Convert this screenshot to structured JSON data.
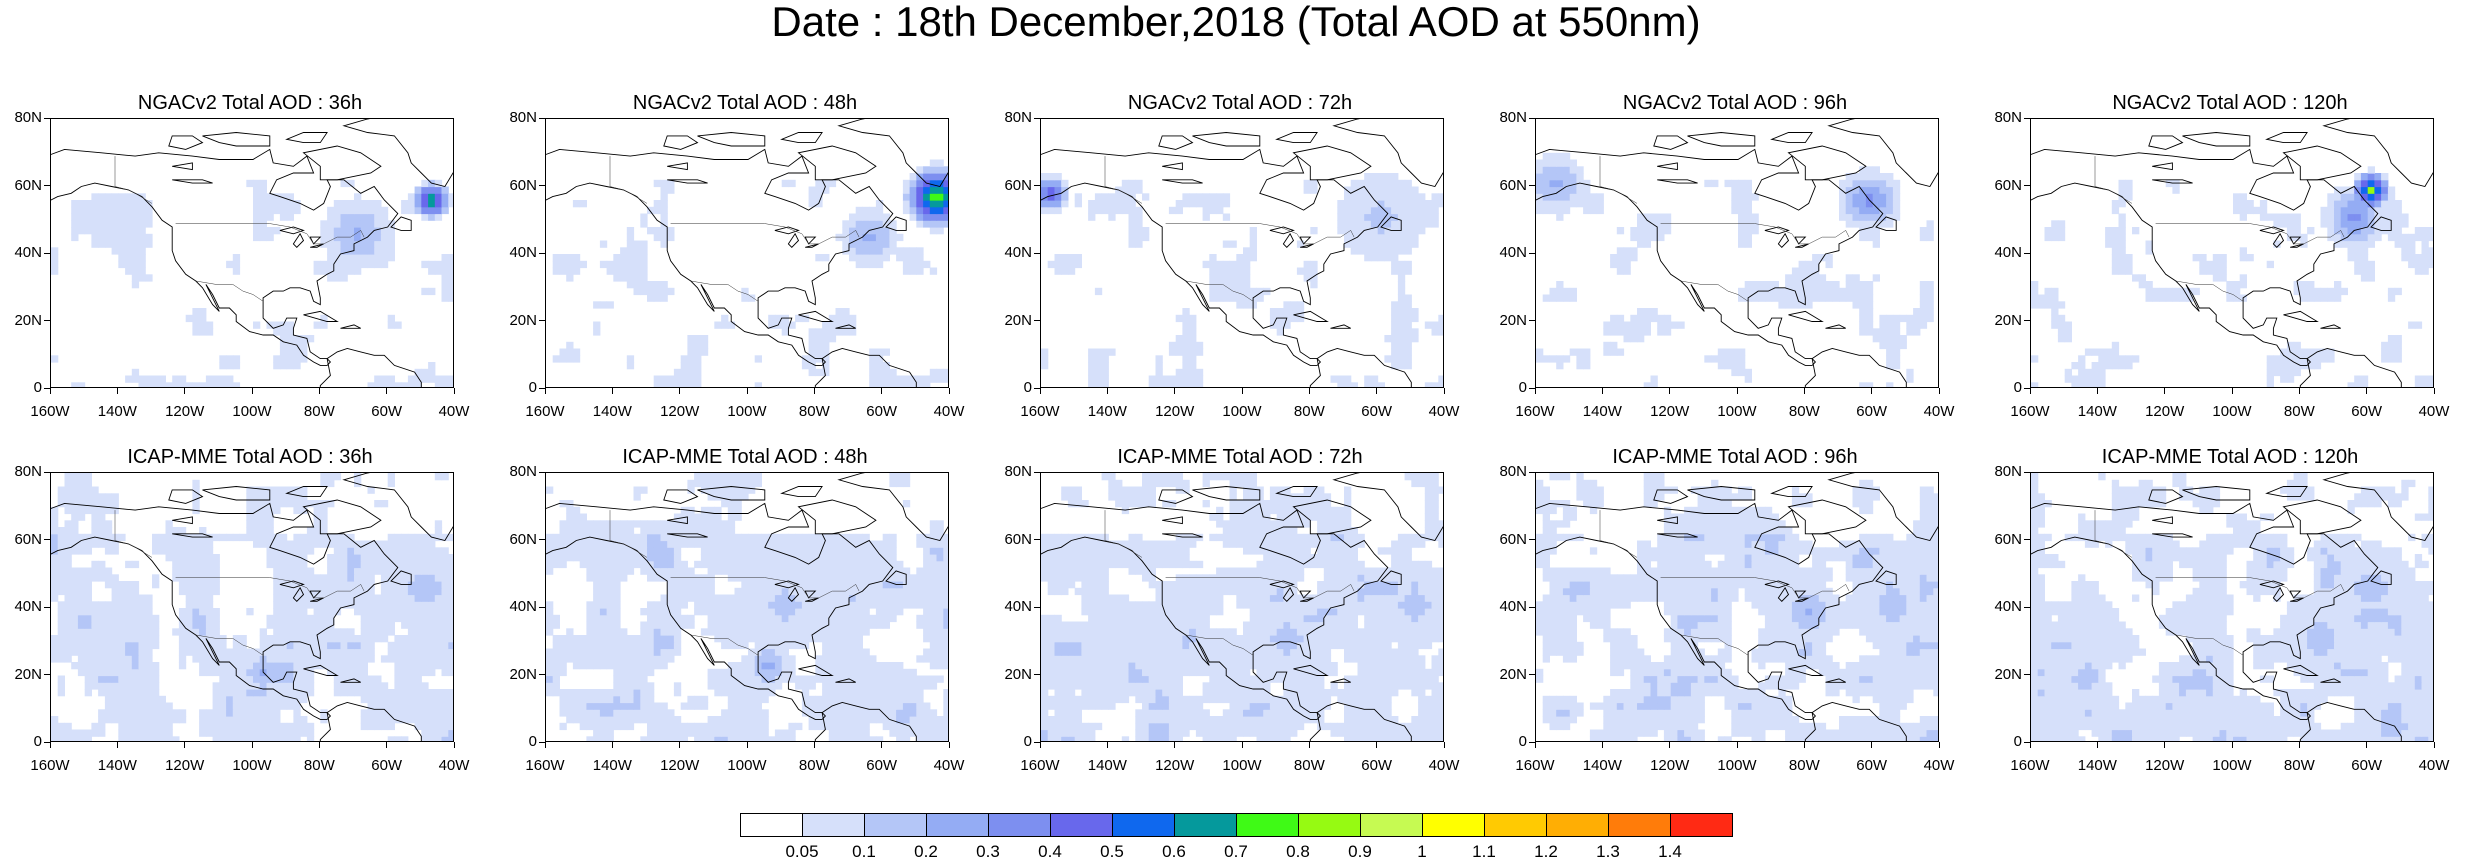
{
  "title": "Date : 18th December,2018 (Total AOD at 550nm)",
  "panels": [
    {
      "title": "NGACv2 Total AOD : 36h",
      "hotspots": [
        {
          "lon": -48,
          "lat": 55,
          "level": 8,
          "r": 3
        },
        {
          "lon": -70,
          "lat": 45,
          "level": 3,
          "r": 6
        }
      ]
    },
    {
      "title": "NGACv2 Total AOD : 48h",
      "hotspots": [
        {
          "lon": -45,
          "lat": 56,
          "level": 9,
          "r": 5
        },
        {
          "lon": -65,
          "lat": 44,
          "level": 3,
          "r": 5
        }
      ]
    },
    {
      "title": "NGACv2 Total AOD : 72h",
      "hotspots": [
        {
          "lon": -158,
          "lat": 57,
          "level": 6,
          "r": 3
        },
        {
          "lon": -60,
          "lat": 50,
          "level": 2,
          "r": 8
        }
      ]
    },
    {
      "title": "NGACv2 Total AOD : 96h",
      "hotspots": [
        {
          "lon": -62,
          "lat": 55,
          "level": 4,
          "r": 5
        },
        {
          "lon": -155,
          "lat": 60,
          "level": 3,
          "r": 5
        }
      ]
    },
    {
      "title": "NGACv2 Total AOD : 120h",
      "hotspots": [
        {
          "lon": -60,
          "lat": 58,
          "level": 9,
          "r": 3
        },
        {
          "lon": -65,
          "lat": 50,
          "level": 4,
          "r": 5
        }
      ]
    },
    {
      "title": "ICAP-MME Total AOD : 36h",
      "hotspots": [
        {
          "lon": -98,
          "lat": 20,
          "level": 3,
          "r": 4
        },
        {
          "lon": -50,
          "lat": 45,
          "level": 2,
          "r": 8
        }
      ]
    },
    {
      "title": "ICAP-MME Total AOD : 48h",
      "hotspots": [
        {
          "lon": -95,
          "lat": 22,
          "level": 3,
          "r": 4
        },
        {
          "lon": -90,
          "lat": 40,
          "level": 2,
          "r": 8
        }
      ]
    },
    {
      "title": "ICAP-MME Total AOD : 72h",
      "hotspots": [
        {
          "lon": -88,
          "lat": 30,
          "level": 2,
          "r": 8
        },
        {
          "lon": -50,
          "lat": 40,
          "level": 2,
          "r": 8
        }
      ]
    },
    {
      "title": "ICAP-MME Total AOD : 96h",
      "hotspots": [
        {
          "lon": -80,
          "lat": 38,
          "level": 3,
          "r": 5
        },
        {
          "lon": -55,
          "lat": 40,
          "level": 2,
          "r": 8
        }
      ]
    },
    {
      "title": "ICAP-MME Total AOD : 120h",
      "hotspots": [
        {
          "lon": -60,
          "lat": 45,
          "level": 2,
          "r": 8
        },
        {
          "lon": -75,
          "lat": 30,
          "level": 2,
          "r": 8
        }
      ]
    }
  ],
  "axes": {
    "lon_range": [
      -160,
      -40
    ],
    "lat_range": [
      0,
      80
    ],
    "x_ticks": [
      {
        "value": -160,
        "label": "160W"
      },
      {
        "value": -140,
        "label": "140W"
      },
      {
        "value": -120,
        "label": "120W"
      },
      {
        "value": -100,
        "label": "100W"
      },
      {
        "value": -80,
        "label": "80W"
      },
      {
        "value": -60,
        "label": "60W"
      },
      {
        "value": -40,
        "label": "40W"
      }
    ],
    "y_ticks": [
      {
        "value": 0,
        "label": "0"
      },
      {
        "value": 20,
        "label": "20N"
      },
      {
        "value": 40,
        "label": "40N"
      },
      {
        "value": 60,
        "label": "60N"
      },
      {
        "value": 80,
        "label": "80N"
      }
    ]
  },
  "colorbar": {
    "colors": [
      "#ffffff",
      "#d6e0fa",
      "#b4c6f7",
      "#94acf4",
      "#7d8ff0",
      "#6868ec",
      "#0f68ee",
      "#05999c",
      "#3ffa16",
      "#96fa12",
      "#c6fa52",
      "#ffff00",
      "#ffca02",
      "#ffae04",
      "#ff7c0a",
      "#ff2a14"
    ],
    "labels": [
      "0.05",
      "0.1",
      "0.2",
      "0.3",
      "0.4",
      "0.5",
      "0.6",
      "0.7",
      "0.8",
      "0.9",
      "1",
      "1.1",
      "1.2",
      "1.3",
      "1.4"
    ]
  }
}
